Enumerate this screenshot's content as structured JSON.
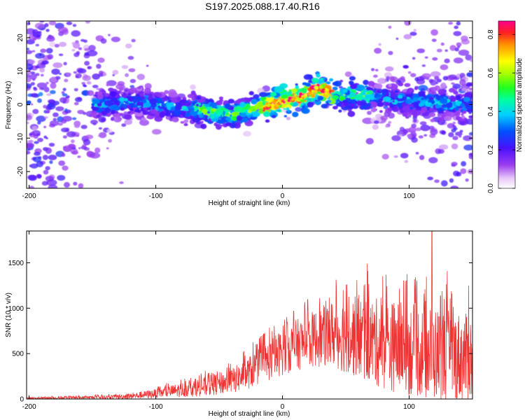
{
  "title": "S197.2025.088.17.40.R16",
  "chart_data": [
    {
      "type": "heatmap",
      "xlabel": "Height of straight line (km)",
      "ylabel": "Frequency (Hz)",
      "xlim": [
        -202,
        150
      ],
      "ylim": [
        -25,
        25
      ],
      "xticks": [
        -200,
        -100,
        0,
        100
      ],
      "yticks": [
        -20,
        -10,
        0,
        10,
        20
      ],
      "colorbar": {
        "label": "Normalized spectral amplitude",
        "range": [
          0.0,
          0.87
        ],
        "ticks": [
          0.0,
          0.2,
          0.4,
          0.6,
          0.8
        ]
      },
      "ridge": {
        "x": [
          -145,
          -120,
          -100,
          -80,
          -60,
          -40,
          -30,
          -20,
          0,
          20,
          28,
          40,
          60,
          80,
          100,
          150
        ],
        "y": [
          0,
          1,
          0,
          -1,
          -2,
          -3,
          -2,
          -1,
          1,
          3,
          5,
          3,
          3,
          2,
          1,
          0
        ]
      }
    },
    {
      "type": "line",
      "xlabel": "Height of straight line (km)",
      "ylabel": "SNR (10 * v/v)",
      "xlim": [
        -202,
        150
      ],
      "ylim": [
        0,
        1850
      ],
      "xticks": [
        -200,
        -100,
        0,
        100
      ],
      "yticks": [
        0,
        500,
        1000,
        1500
      ],
      "color": "#ee3333",
      "envelope": {
        "x": [
          -202,
          -180,
          -160,
          -140,
          -120,
          -100,
          -80,
          -60,
          -40,
          -30,
          -20,
          -10,
          0,
          10,
          20,
          30,
          40,
          50,
          60,
          80,
          100,
          120,
          140,
          150
        ],
        "mean": [
          10,
          12,
          15,
          20,
          30,
          60,
          100,
          140,
          200,
          260,
          350,
          430,
          520,
          590,
          640,
          680,
          720,
          700,
          680,
          600,
          550,
          500,
          460,
          440
        ],
        "amp": [
          10,
          12,
          15,
          20,
          30,
          50,
          80,
          110,
          140,
          170,
          200,
          230,
          260,
          280,
          300,
          330,
          380,
          420,
          460,
          500,
          520,
          520,
          500,
          480
        ]
      },
      "peaks": [
        {
          "x": 20,
          "y": 1100
        },
        {
          "x": 48,
          "y": 1200
        },
        {
          "x": 67,
          "y": 1490
        },
        {
          "x": 97,
          "y": 1300
        },
        {
          "x": 118,
          "y": 1850
        },
        {
          "x": 130,
          "y": 1410
        },
        {
          "x": 147,
          "y": 1250
        }
      ]
    }
  ]
}
